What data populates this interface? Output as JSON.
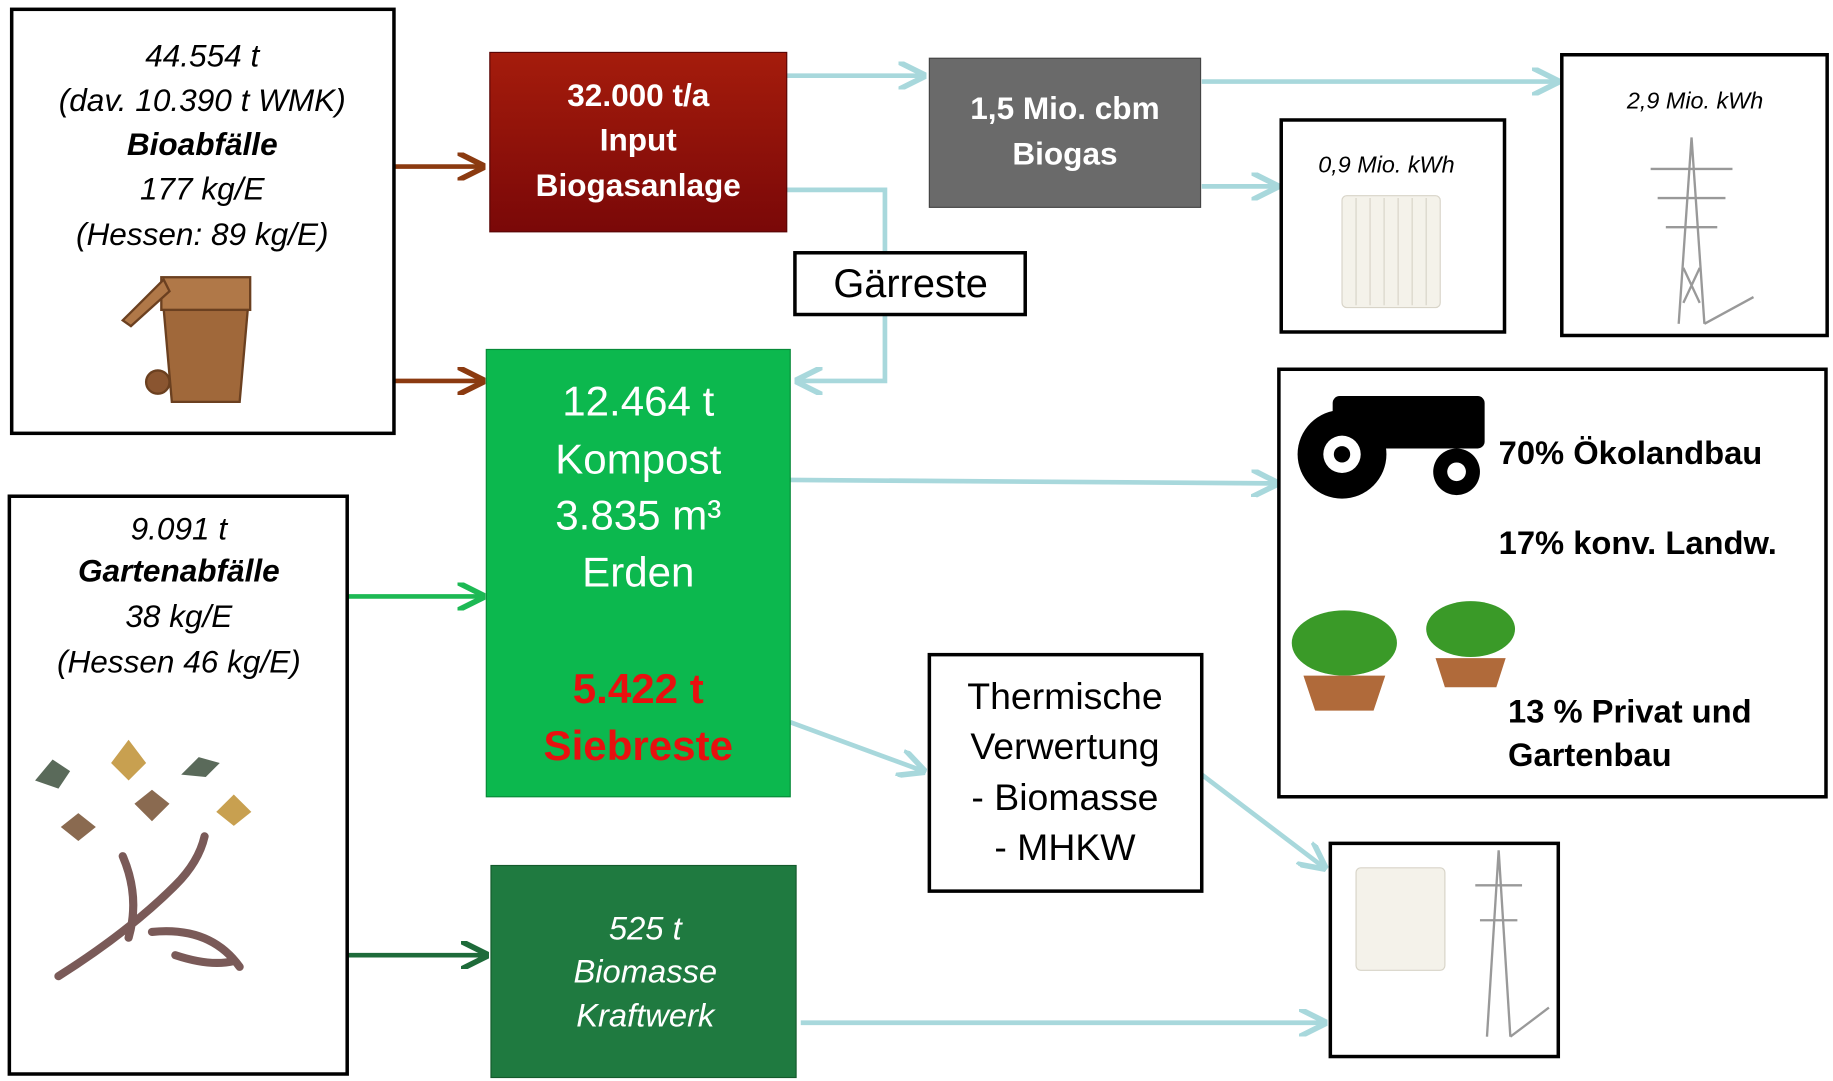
{
  "bioabfaelle": {
    "lines": [
      "44.554 t",
      "(dav. 10.390 t WMK)",
      "Bioabfälle",
      "177 kg/E",
      "(Hessen: 89 kg/E)"
    ]
  },
  "gartenabfaelle": {
    "lines": [
      "9.091 t",
      "Gartenabfälle",
      "38 kg/E",
      "(Hessen 46 kg/E)"
    ]
  },
  "biogasanlage": {
    "lines": [
      "32.000 t/a",
      "Input",
      "Biogasanlage"
    ]
  },
  "biogas": {
    "lines": [
      "1,5 Mio. cbm",
      "Biogas"
    ]
  },
  "gaerreste": "Gärreste",
  "kompost": {
    "lines": [
      "12.464 t",
      "Kompost",
      "3.835 m³",
      "Erden"
    ],
    "siebreste": [
      "5.422 t",
      "Siebreste"
    ]
  },
  "biomasse_kraftwerk": {
    "lines": [
      "525 t",
      "Biomasse",
      "Kraftwerk"
    ]
  },
  "thermische_verwertung": {
    "lines": [
      "Thermische",
      "Verwertung",
      "- Biomasse",
      "- MHKW"
    ]
  },
  "waerme": "0,9 Mio. kWh",
  "strom": "2,9 Mio. kWh",
  "verwertung": {
    "lines": [
      "70% Ökolandbau",
      "17% konv. Landw.",
      "13 % Privat und",
      "Gartenbau"
    ]
  }
}
